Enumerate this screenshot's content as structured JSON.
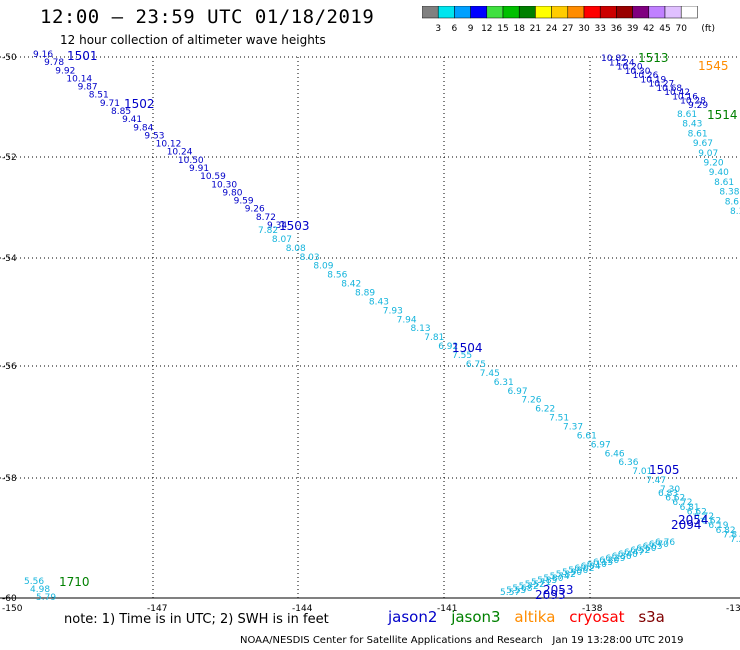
{
  "header": {
    "title": "12:00 — 23:59 UTC 01/18/2019",
    "subtitle": "12 hour collection of altimeter wave heights"
  },
  "colorbar": {
    "colors": [
      "#808080",
      "#00e5ee",
      "#00a0ff",
      "#0000ff",
      "#40e040",
      "#00c000",
      "#008000",
      "#ffff00",
      "#ffcc00",
      "#ff8c00",
      "#ff0000",
      "#cc0000",
      "#990000",
      "#800080",
      "#c080ff",
      "#e0c0ff",
      "#ffffff"
    ],
    "labels": [
      "3",
      "6",
      "9",
      "12",
      "15",
      "18",
      "21",
      "24",
      "27",
      "30",
      "33",
      "36",
      "39",
      "42",
      "45",
      "70"
    ],
    "unit": "(ft)"
  },
  "axes": {
    "lat_labels": [
      "-50",
      "-52",
      "-54",
      "-56",
      "-58",
      "-60"
    ],
    "lon_labels": [
      "-150",
      "-147",
      "-144",
      "-141",
      "-138",
      "-13"
    ]
  },
  "colors": {
    "jason2": "#0000c8",
    "jason3": "#008000",
    "altika": "#ff8c00",
    "cryosat": "#ff0000",
    "s3a": "#800000",
    "track_cyan": "#14b4dc"
  },
  "tracks": [
    {
      "id": "t1",
      "color": "#0000c8",
      "values": [
        "9.16",
        "9.78",
        "9.92",
        "10.14",
        "9.87",
        "8.51",
        "9.71",
        "8.85",
        "9.41",
        "9.84",
        "9.53",
        "10.12",
        "10.24",
        "10.50",
        "9.91",
        "10.59",
        "10.30",
        "9.80",
        "9.59",
        "9.26",
        "8.72",
        "9.34"
      ]
    },
    {
      "id": "t2",
      "color": "#14b4dc",
      "values": [
        "7.82",
        "8.07",
        "8.08",
        "8.03",
        "8.09",
        "8.56",
        "8.42",
        "8.89",
        "8.43",
        "7.93",
        "7.94",
        "8.13",
        "7.81",
        "6.92",
        "7.55",
        "6.75",
        "7.45",
        "6.31",
        "6.97",
        "7.26",
        "6.22",
        "7.51",
        "7.37",
        "6.61",
        "6.97",
        "6.46",
        "6.36",
        "7.01",
        "7.47",
        "7.30"
      ]
    },
    {
      "id": "t3",
      "color": "#0000c8",
      "values": [
        "10.82",
        "11.24",
        "10.20",
        "10.30",
        "10.26",
        "10.19",
        "10.27",
        "10.68",
        "10.42",
        "10.16",
        "10.28",
        "9.29"
      ]
    },
    {
      "id": "t4",
      "color": "#14b4dc",
      "values": [
        "8.61",
        "8.43",
        "8.61",
        "9.67",
        "9.07",
        "9.20",
        "9.40",
        "8.61",
        "8.38",
        "8.6",
        "8.3"
      ]
    },
    {
      "id": "t5",
      "color": "#14b4dc",
      "values": [
        "6.83",
        "6.62",
        "6.72",
        "6.81",
        "6.62",
        "6.72",
        "6.62",
        "6.19",
        "6.82",
        "7.8",
        "7.2"
      ]
    },
    {
      "id": "t6",
      "color": "#14b4dc",
      "values": [
        "5.56",
        "4.98",
        "5.79"
      ]
    },
    {
      "id": "t7",
      "color": "#14b4dc",
      "values": [
        "5.57",
        "5.55",
        "5.68",
        "5.72",
        "5.52",
        "5.71",
        "5.85",
        "5.80",
        "5.74",
        "5.82",
        "5.90",
        "5.96",
        "6.02",
        "6.04",
        "6.10",
        "6.15",
        "6.20",
        "6.29",
        "6.36",
        "6.40",
        "6.47",
        "6.52",
        "6.60",
        "6.65",
        "6.70",
        "6.76"
      ]
    }
  ],
  "pass_labels": [
    {
      "id": "p1501",
      "text": "1501",
      "color": "#0000c8"
    },
    {
      "id": "p1502",
      "text": "1502",
      "color": "#0000c8"
    },
    {
      "id": "p1503",
      "text": "1503",
      "color": "#0000c8"
    },
    {
      "id": "p1504",
      "text": "1504",
      "color": "#0000c8"
    },
    {
      "id": "p1505",
      "text": "1505",
      "color": "#0000c8"
    },
    {
      "id": "p1513",
      "text": "1513",
      "color": "#008000"
    },
    {
      "id": "p1514",
      "text": "1514",
      "color": "#008000"
    },
    {
      "id": "p1545",
      "text": "1545",
      "color": "#ff8c00"
    },
    {
      "id": "p1710",
      "text": "1710",
      "color": "#008000"
    },
    {
      "id": "p2053",
      "text": "2053",
      "color": "#0000c8"
    },
    {
      "id": "p2093",
      "text": "2093",
      "color": "#0000c8"
    },
    {
      "id": "p2054",
      "text": "2054",
      "color": "#0000c8"
    },
    {
      "id": "p2094",
      "text": "2094",
      "color": "#0000c8"
    }
  ],
  "footer": {
    "note": "note: 1) Time is in UTC; 2) SWH is in feet",
    "sat_jason2": "jason2",
    "sat_jason3": "jason3",
    "sat_altika": "altika",
    "sat_cryosat": "cryosat",
    "sat_s3a": "s3a",
    "credit": "NOAA/NESDIS Center for Satellite Applications and Research",
    "timestamp": "Jan 19 13:28:00 UTC 2019"
  }
}
